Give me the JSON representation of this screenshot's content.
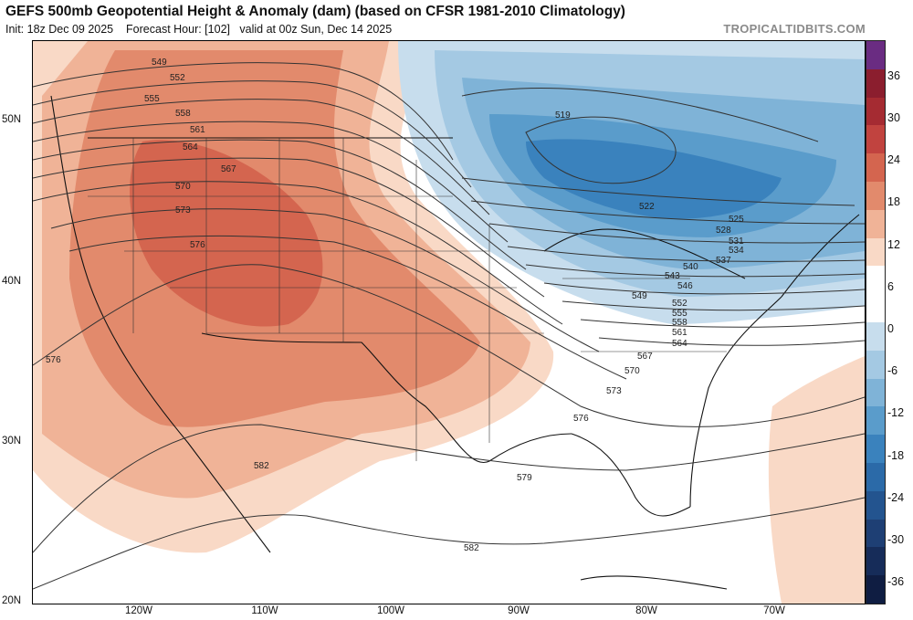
{
  "header": {
    "title": "GEFS 500mb Geopotential Height & Anomaly (dam) (based on CFSR 1981-2010 Climatology)",
    "init_label": "Init: 18z Dec 09 2025",
    "forecast_hour_label": "Forecast Hour: [102]",
    "valid_label": "valid at 00z Sun, Dec 14 2025",
    "credit": "TROPICALTIDBITS.COM"
  },
  "axes": {
    "lat_ticks": [
      "50N",
      "40N",
      "30N",
      "20N"
    ],
    "lon_ticks": [
      "120W",
      "110W",
      "100W",
      "90W",
      "80W",
      "70W"
    ]
  },
  "colorbar": {
    "labels": [
      "36",
      "30",
      "24",
      "18",
      "12",
      "6",
      "0",
      "-6",
      "-12",
      "-18",
      "-24",
      "-30",
      "-36"
    ],
    "colors": [
      "#6a2c82",
      "#8b1e2e",
      "#a52b32",
      "#c1433f",
      "#d4654f",
      "#e28a6c",
      "#f0b397",
      "#f9d9c6",
      "#ffffff",
      "#ffffff",
      "#c7dded",
      "#a4c9e3",
      "#7fb3d7",
      "#5a9ccb",
      "#3a82bd",
      "#2b6aa8",
      "#23548f",
      "#1e3f74",
      "#162c59",
      "#0f1d42"
    ]
  },
  "contours": {
    "labels": [
      "549",
      "552",
      "555",
      "558",
      "561",
      "564",
      "567",
      "570",
      "573",
      "576",
      "576",
      "582",
      "519",
      "522",
      "525",
      "528",
      "531",
      "534",
      "537",
      "540",
      "543",
      "546",
      "549",
      "552",
      "555",
      "558",
      "561",
      "564",
      "567",
      "570",
      "573",
      "576",
      "579",
      "582"
    ]
  }
}
